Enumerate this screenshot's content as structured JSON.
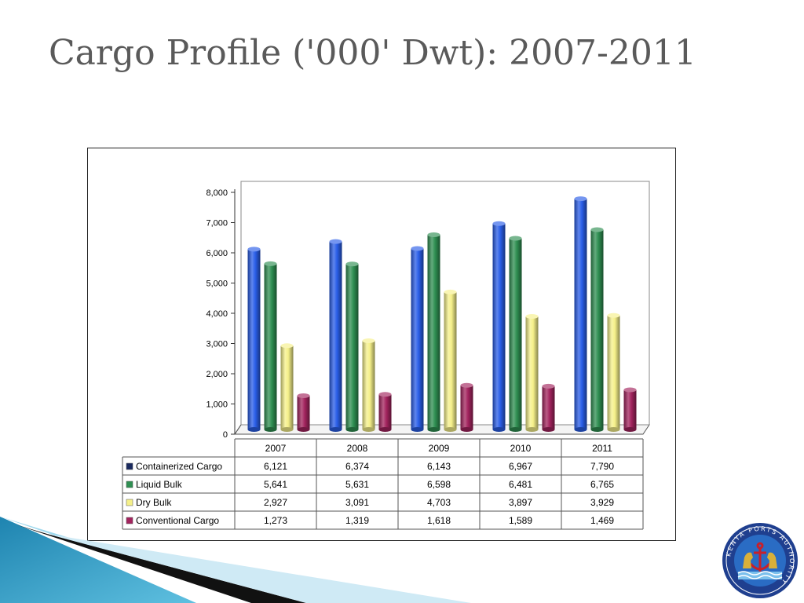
{
  "slide": {
    "title": "Cargo Profile ('000' Dwt): 2007-2011"
  },
  "logo": {
    "ring_text": "KENYA PORTS AUTHORITY",
    "colors": {
      "ring": "#1f3f8f",
      "inner": "#2a6cc4",
      "gold": "#d8b03a",
      "red": "#c8202a"
    }
  },
  "chart_data": {
    "type": "bar",
    "categories": [
      "2007",
      "2008",
      "2009",
      "2010",
      "2011"
    ],
    "series": [
      {
        "name": "Containerized Cargo",
        "values": [
          6121,
          6374,
          6143,
          6967,
          7790
        ],
        "labels": [
          "6,121",
          "6,374",
          "6,143",
          "6,967",
          "7,790"
        ],
        "color": "#2a5ee8",
        "legend_color": "#1a2a5e"
      },
      {
        "name": "Liquid Bulk",
        "values": [
          5641,
          5631,
          6598,
          6481,
          6765
        ],
        "labels": [
          "5,641",
          "5,631",
          "6,598",
          "6,481",
          "6,765"
        ],
        "color": "#2f8f52",
        "legend_color": "#2f8f52"
      },
      {
        "name": "Dry Bulk",
        "values": [
          2927,
          3091,
          4703,
          3897,
          3929
        ],
        "labels": [
          "2,927",
          "3,091",
          "4,703",
          "3,897",
          "3,929"
        ],
        "color": "#f5f08a",
        "legend_color": "#f5f08a"
      },
      {
        "name": "Conventional Cargo",
        "values": [
          1273,
          1319,
          1618,
          1589,
          1469
        ],
        "labels": [
          "1,273",
          "1,319",
          "1,618",
          "1,589",
          "1,469"
        ],
        "color": "#a3245e",
        "legend_color": "#a3245e"
      }
    ],
    "yticks": [
      "0",
      "1,000",
      "2,000",
      "3,000",
      "4,000",
      "5,000",
      "6,000",
      "7,000",
      "8,000"
    ],
    "ylim": [
      0,
      8000
    ],
    "grid": false,
    "legend": "data-table",
    "title": "",
    "xlabel": "",
    "ylabel": ""
  }
}
